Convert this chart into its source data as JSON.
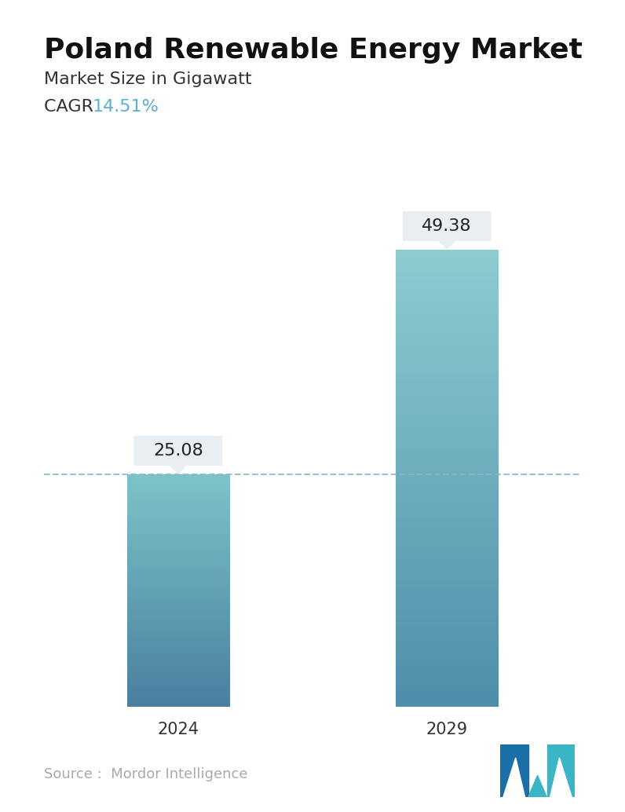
{
  "title": "Poland Renewable Energy Market",
  "subtitle": "Market Size in Gigawatt",
  "cagr_label": "CAGR",
  "cagr_value": "14.51%",
  "cagr_color": "#5aafd4",
  "categories": [
    "2024",
    "2029"
  ],
  "values": [
    25.08,
    49.38
  ],
  "bar1_color_top": "#7dc4c8",
  "bar1_color_bottom": "#4a7fa0",
  "bar2_color_top": "#8eccd0",
  "bar2_color_bottom": "#4f8eaa",
  "dashed_line_color": "#88b8cc",
  "dashed_line_y": 25.08,
  "annotation_bg_color": "#e8eef2",
  "annotation_text_color": "#222222",
  "source_text": "Source :  Mordor Intelligence",
  "source_color": "#aaaaaa",
  "background_color": "#ffffff",
  "ylim": [
    0,
    58
  ],
  "title_fontsize": 26,
  "subtitle_fontsize": 16,
  "cagr_fontsize": 16,
  "tick_fontsize": 15,
  "annotation_fontsize": 16,
  "source_fontsize": 13
}
